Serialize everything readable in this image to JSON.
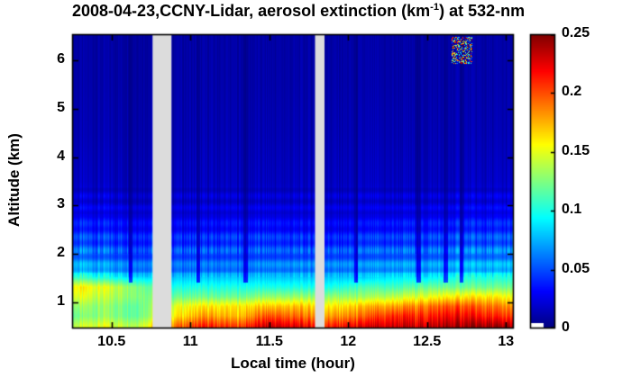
{
  "title": {
    "prefix": "2008-04-23,CCNY-Lidar, aerosol extinction (km",
    "superscript": "-1",
    "suffix": ") at 532-nm"
  },
  "axes": {
    "xlabel": "Local time (hour)",
    "ylabel": "Altitude (km)",
    "x_range": [
      10.25,
      13.05
    ],
    "y_range": [
      0.45,
      6.55
    ],
    "x_ticks": [
      10.5,
      11,
      11.5,
      12,
      12.5,
      13
    ],
    "x_tick_labels": [
      "10.5",
      "11",
      "11.5",
      "12",
      "12.5",
      "13"
    ],
    "y_ticks": [
      1,
      2,
      3,
      4,
      5,
      6
    ],
    "y_tick_labels": [
      "1",
      "2",
      "3",
      "4",
      "5",
      "6"
    ]
  },
  "colorbar": {
    "min": 0,
    "max": 0.25,
    "ticks": [
      0,
      0.05,
      0.1,
      0.15,
      0.2,
      0.25
    ],
    "tick_labels": [
      "0",
      "0.05",
      "0.1",
      "0.15",
      "0.2",
      "0.25"
    ],
    "colormap": "jet"
  },
  "colors": {
    "background": "#ffffff",
    "axis": "#000000",
    "gap": "#dcdcdc",
    "low_extinction_blue": "#0000c8",
    "high_extinction_red": "#8b0000"
  },
  "chart_data": {
    "type": "heatmap",
    "title": "2008-04-23,CCNY-Lidar, aerosol extinction (km-1) at 532-nm",
    "xlabel": "Local time (hour)",
    "ylabel": "Altitude (km)",
    "colormap": "jet",
    "clim": [
      0,
      0.25
    ],
    "x_range": [
      10.25,
      13.05
    ],
    "y_range": [
      0.45,
      6.55
    ],
    "x": [
      10.25,
      10.45,
      10.65,
      10.9,
      11.1,
      11.3,
      11.5,
      11.7,
      11.9,
      12.1,
      12.3,
      12.5,
      12.7,
      12.9,
      13.05
    ],
    "altitudes": [
      0.5,
      0.7,
      0.9,
      1.1,
      1.3,
      1.5,
      1.75,
      2.0,
      2.25,
      2.5,
      3.0,
      3.5,
      4.5,
      5.5,
      6.55
    ],
    "values": [
      [
        0.14,
        0.15,
        0.14,
        0.19,
        0.21,
        0.2,
        0.23,
        0.22,
        0.21,
        0.22,
        0.23,
        0.23,
        0.24,
        0.24,
        0.23
      ],
      [
        0.12,
        0.13,
        0.12,
        0.16,
        0.18,
        0.17,
        0.2,
        0.19,
        0.18,
        0.19,
        0.21,
        0.21,
        0.22,
        0.21,
        0.2
      ],
      [
        0.13,
        0.13,
        0.12,
        0.15,
        0.16,
        0.16,
        0.17,
        0.17,
        0.16,
        0.17,
        0.18,
        0.19,
        0.2,
        0.19,
        0.18
      ],
      [
        0.15,
        0.14,
        0.13,
        0.12,
        0.12,
        0.12,
        0.13,
        0.13,
        0.13,
        0.13,
        0.14,
        0.15,
        0.16,
        0.16,
        0.15
      ],
      [
        0.16,
        0.15,
        0.13,
        0.1,
        0.1,
        0.1,
        0.1,
        0.1,
        0.1,
        0.11,
        0.11,
        0.12,
        0.12,
        0.12,
        0.12
      ],
      [
        0.11,
        0.1,
        0.09,
        0.08,
        0.08,
        0.08,
        0.08,
        0.08,
        0.08,
        0.08,
        0.09,
        0.09,
        0.1,
        0.1,
        0.1
      ],
      [
        0.07,
        0.065,
        0.06,
        0.055,
        0.055,
        0.055,
        0.06,
        0.06,
        0.06,
        0.06,
        0.065,
        0.065,
        0.07,
        0.07,
        0.07
      ],
      [
        0.06,
        0.055,
        0.05,
        0.05,
        0.05,
        0.05,
        0.05,
        0.05,
        0.05,
        0.05,
        0.055,
        0.055,
        0.06,
        0.06,
        0.06
      ],
      [
        0.05,
        0.047,
        0.045,
        0.042,
        0.042,
        0.045,
        0.045,
        0.042,
        0.04,
        0.042,
        0.045,
        0.047,
        0.05,
        0.05,
        0.05
      ],
      [
        0.04,
        0.038,
        0.036,
        0.032,
        0.032,
        0.035,
        0.035,
        0.032,
        0.03,
        0.032,
        0.036,
        0.038,
        0.04,
        0.04,
        0.04
      ],
      [
        0.024,
        0.023,
        0.021,
        0.02,
        0.02,
        0.021,
        0.021,
        0.02,
        0.02,
        0.02,
        0.021,
        0.022,
        0.024,
        0.024,
        0.024
      ],
      [
        0.016,
        0.016,
        0.015,
        0.015,
        0.015,
        0.015,
        0.015,
        0.015,
        0.015,
        0.015,
        0.015,
        0.015,
        0.016,
        0.016,
        0.016
      ],
      [
        0.012,
        0.012,
        0.012,
        0.012,
        0.012,
        0.012,
        0.012,
        0.012,
        0.012,
        0.012,
        0.012,
        0.012,
        0.013,
        0.012,
        0.012
      ],
      [
        0.01,
        0.01,
        0.01,
        0.01,
        0.01,
        0.01,
        0.01,
        0.01,
        0.01,
        0.01,
        0.01,
        0.01,
        0.011,
        0.01,
        0.01
      ],
      [
        0.009,
        0.009,
        0.009,
        0.009,
        0.009,
        0.009,
        0.009,
        0.009,
        0.009,
        0.009,
        0.009,
        0.009,
        0.01,
        0.009,
        0.009
      ]
    ],
    "gaps": [
      [
        10.76,
        10.88
      ],
      [
        11.79,
        11.85
      ]
    ],
    "dark_streak_times": [
      10.62,
      11.05,
      11.35,
      12.05,
      12.45,
      12.62,
      12.72
    ],
    "cloud": {
      "t": [
        12.66,
        12.79
      ],
      "z": [
        5.95,
        6.5
      ],
      "max": 0.25
    },
    "legend": "colorbar right, 0 to 0.25 km^-1, jet colormap",
    "grid": false
  }
}
